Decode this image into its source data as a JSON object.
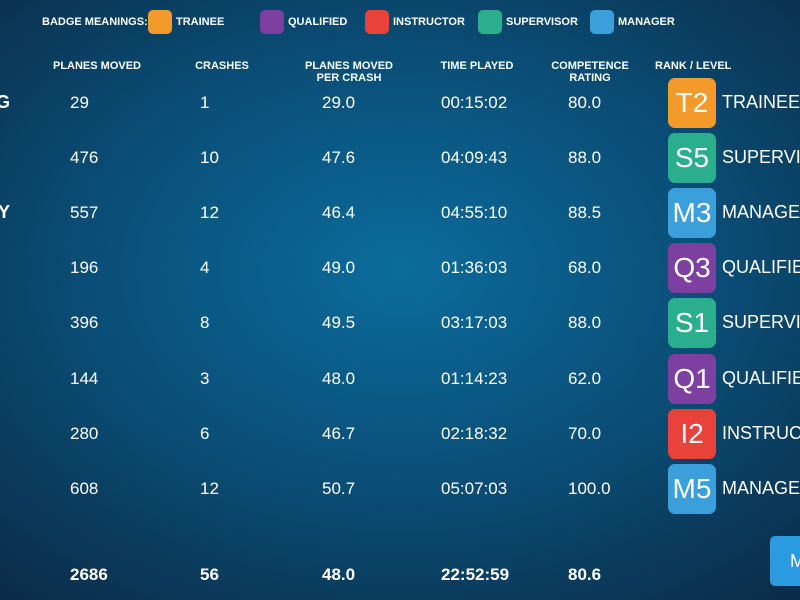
{
  "legend": {
    "title": "BADGE MEANINGS:",
    "items": [
      {
        "label": "TRAINEE",
        "color": "#f39a2b"
      },
      {
        "label": "QUALIFIED",
        "color": "#7d3fa0"
      },
      {
        "label": "INSTRUCTOR",
        "color": "#e8423b"
      },
      {
        "label": "SUPERVISOR",
        "color": "#2aae8e"
      },
      {
        "label": "MANAGER",
        "color": "#3b9fdc"
      }
    ]
  },
  "table": {
    "headers": [
      "PLANES MOVED",
      "CRASHES",
      "PLANES MOVED\nPER CRASH",
      "TIME PLAYED",
      "COMPETENCE\nRATING",
      "RANK / LEVEL"
    ],
    "rows": [
      {
        "name": "G",
        "cells": [
          "29",
          "1",
          "29.0",
          "00:15:02",
          "80.0"
        ],
        "badge": "T2",
        "rank": "TRAINEE",
        "color": "#f39a2b"
      },
      {
        "name": null,
        "cells": [
          "476",
          "10",
          "47.6",
          "04:09:43",
          "88.0"
        ],
        "badge": "S5",
        "rank": "SUPERVISOR",
        "color": "#2aae8e"
      },
      {
        "name": "TY",
        "cells": [
          "557",
          "12",
          "46.4",
          "04:55:10",
          "88.5"
        ],
        "badge": "M3",
        "rank": "MANAGER",
        "color": "#3b9fdc"
      },
      {
        "name": null,
        "cells": [
          "196",
          "4",
          "49.0",
          "01:36:03",
          "68.0"
        ],
        "badge": "Q3",
        "rank": "QUALIFIED",
        "color": "#7d3fa0"
      },
      {
        "name": null,
        "cells": [
          "396",
          "8",
          "49.5",
          "03:17:03",
          "88.0"
        ],
        "badge": "S1",
        "rank": "SUPERVISOR",
        "color": "#2aae8e"
      },
      {
        "name": null,
        "cells": [
          "144",
          "3",
          "48.0",
          "01:14:23",
          "62.0"
        ],
        "badge": "Q1",
        "rank": "QUALIFIED",
        "color": "#7d3fa0"
      },
      {
        "name": null,
        "cells": [
          "280",
          "6",
          "46.7",
          "02:18:32",
          "70.0"
        ],
        "badge": "I2",
        "rank": "INSTRUCTOR",
        "color": "#e8423b"
      },
      {
        "name": null,
        "cells": [
          "608",
          "12",
          "50.7",
          "05:07:03",
          "100.0"
        ],
        "badge": "M5",
        "rank": "MANAGER",
        "color": "#3b9fdc"
      }
    ],
    "totals": [
      "2686",
      "56",
      "48.0",
      "22:52:59",
      "80.6"
    ]
  },
  "button": {
    "label": "M"
  }
}
